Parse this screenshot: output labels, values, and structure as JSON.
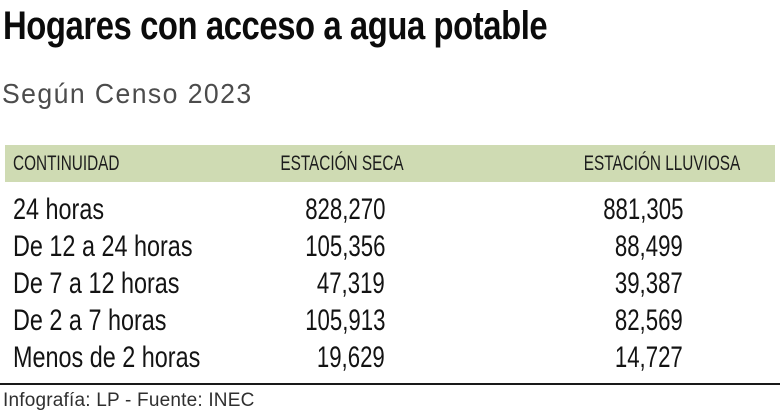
{
  "page": {
    "title": "Hogares con acceso a agua potable",
    "subtitle": "Según Censo 2023"
  },
  "table": {
    "columns": {
      "continuity": "CONTINUIDAD",
      "dry": "ESTACIÓN SECA",
      "rainy": "ESTACIÓN LLUVIOSA"
    },
    "rows": [
      {
        "label": "24 horas",
        "dry": "828,270",
        "rainy": "881,305"
      },
      {
        "label": "De 12 a 24 horas",
        "dry": "105,356",
        "rainy": "88,499"
      },
      {
        "label": "De 7 a 12 horas",
        "dry": "47,319",
        "rainy": "39,387"
      },
      {
        "label": "De 2 a 7 horas",
        "dry": "105,913",
        "rainy": "82,569"
      },
      {
        "label": "Menos de 2 horas",
        "dry": "19,629",
        "rainy": "14,727"
      }
    ]
  },
  "footer": {
    "credit": "Infografía: LP - Fuente: INEC"
  },
  "colors": {
    "header_background": "#cfdbb3",
    "title_text": "#0b0b0b",
    "subtitle_text": "#4c4c4c",
    "body_text": "#131313",
    "footer_rule": "#191919",
    "footer_text": "#2f2f2f"
  },
  "chart_data": {
    "type": "table",
    "title": "Hogares con acceso a agua potable",
    "subtitle": "Según Censo 2023",
    "columns": [
      "CONTINUIDAD",
      "ESTACIÓN SECA",
      "ESTACIÓN LLUVIOSA"
    ],
    "categories": [
      "24 horas",
      "De 12 a 24 horas",
      "De 7 a 12 horas",
      "De 2 a 7 horas",
      "Menos de 2 horas"
    ],
    "series": [
      {
        "name": "ESTACIÓN SECA",
        "values": [
          828270,
          105356,
          47319,
          105913,
          19629
        ]
      },
      {
        "name": "ESTACIÓN LLUVIOSA",
        "values": [
          881305,
          88499,
          39387,
          82569,
          14727
        ]
      }
    ],
    "source": "Infografía: LP - Fuente: INEC"
  }
}
